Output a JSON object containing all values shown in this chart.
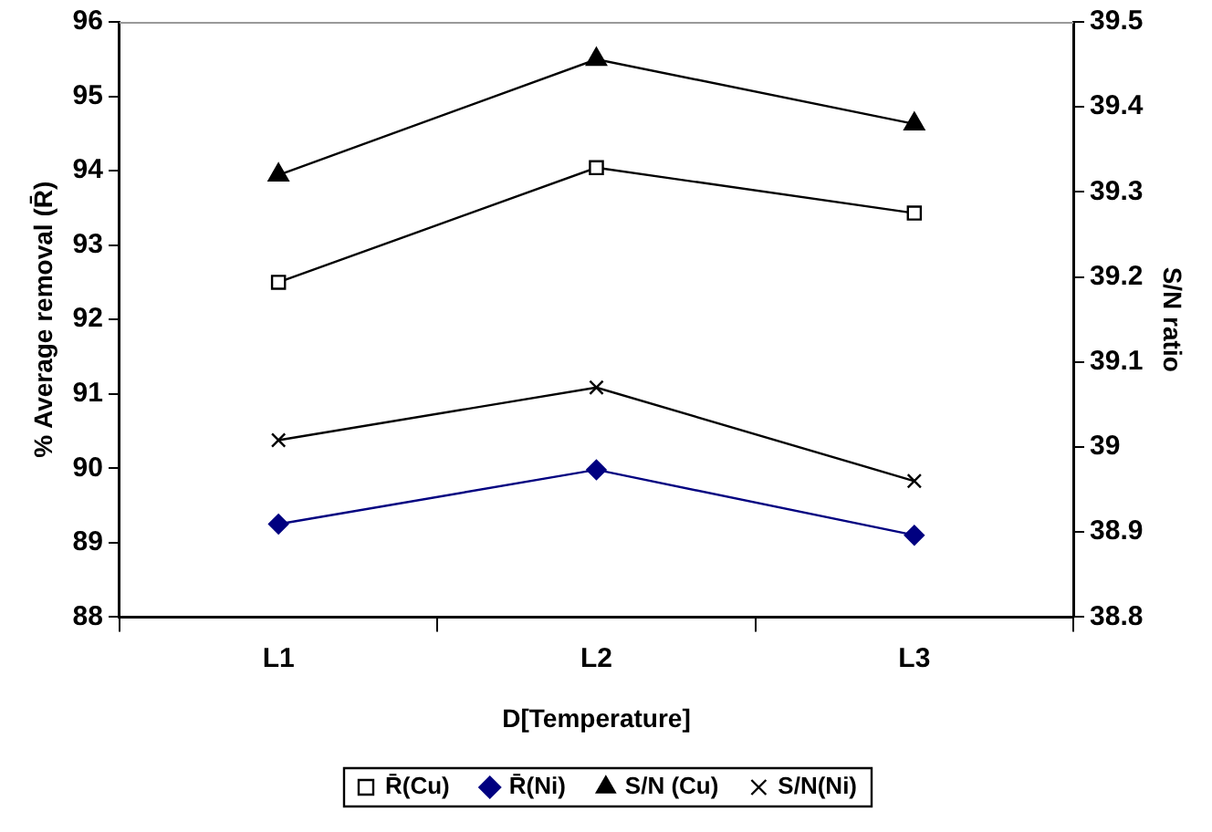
{
  "chart_data": {
    "type": "line",
    "xlabel": "D[Temperature]",
    "ylabel": "% Average removal (R̄)",
    "y2label": "S/N ratio",
    "categories": [
      "L1",
      "L2",
      "L3"
    ],
    "series": [
      {
        "name": "R̄(Cu)",
        "color": "#000000",
        "marker": "square",
        "values": [
          92.5,
          94.04,
          93.43
        ]
      },
      {
        "name": "R̄(Ni)",
        "color": "#000080",
        "marker": "diamond",
        "values": [
          89.25,
          89.98,
          89.1
        ]
      },
      {
        "name": "S/N (Cu)",
        "color": "#000000",
        "marker": "triangle",
        "axis": "y2",
        "values": [
          39.32,
          39.456,
          39.38
        ]
      },
      {
        "name": "S/N(Ni)",
        "color": "#000000",
        "marker": "cross",
        "axis": "y2",
        "values": [
          39.008,
          39.07,
          38.96
        ]
      }
    ],
    "ylim": [
      88,
      96
    ],
    "yticks": [
      88,
      89,
      90,
      91,
      92,
      93,
      94,
      95,
      96
    ],
    "y2lim": [
      38.8,
      39.5
    ],
    "y2ticks": [
      38.8,
      38.9,
      39,
      39.1,
      39.2,
      39.3,
      39.4,
      39.5
    ],
    "grid": false,
    "legend": "bottom",
    "line_style": "solid"
  }
}
